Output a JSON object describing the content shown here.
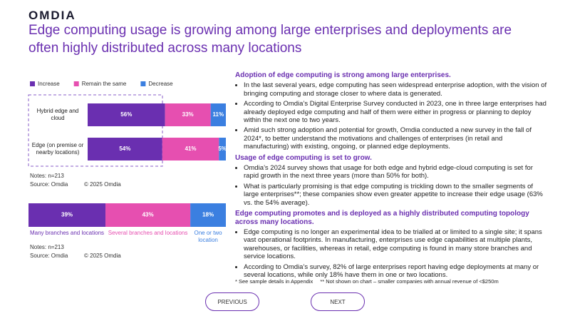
{
  "logo": "OMDIA",
  "title": "Edge computing usage is growing among large enterprises and deployments are often highly distributed across many locations",
  "chart_data": [
    {
      "type": "bar",
      "orientation": "horizontal",
      "stacked": true,
      "categories": [
        "Hybrid edge and cloud",
        "Edge (on premise or nearby locations)"
      ],
      "series": [
        {
          "name": "Increase",
          "color": "#6a2fb0",
          "values": [
            56,
            54
          ],
          "value_labels": [
            "56%",
            "54%"
          ]
        },
        {
          "name": "Remain the same",
          "color": "#e64fb0",
          "values": [
            33,
            41
          ],
          "value_labels": [
            "33%",
            "41%"
          ]
        },
        {
          "name": "Decrease",
          "color": "#3b7fe0",
          "values": [
            11,
            5
          ],
          "value_labels": [
            "11%",
            "5%"
          ]
        }
      ],
      "xlim": [
        0,
        100
      ],
      "legend": "top-left",
      "notes": "Notes: n=213",
      "source": "Source: Omdia",
      "copyright": "© 2025 Omdia"
    },
    {
      "type": "bar",
      "orientation": "horizontal",
      "stacked": true,
      "categories": [
        null
      ],
      "series": [
        {
          "name": "Many branches and locations",
          "color": "#6a2fb0",
          "values": [
            39
          ],
          "value_labels": [
            "39%"
          ]
        },
        {
          "name": "Several branches and locations",
          "color": "#e64fb0",
          "values": [
            43
          ],
          "value_labels": [
            "43%"
          ]
        },
        {
          "name": "One or two location",
          "color": "#3b7fe0",
          "values": [
            18
          ],
          "value_labels": [
            "18%"
          ]
        }
      ],
      "xlim": [
        0,
        100
      ],
      "legend": "bottom",
      "notes": "Notes: n=213",
      "source": "Source: Omdia",
      "copyright": "© 2025 Omdia"
    }
  ],
  "sections": [
    {
      "heading": "Adoption of edge computing is strong among large enterprises.",
      "bullets": [
        "In the last several years, edge computing has seen widespread enterprise adoption, with the vision of bringing computing and storage closer to where data is generated.",
        "According to Omdia’s Digital Enterprise Survey conducted in 2023, one in three large enterprises had already deployed edge computing and half of them were either in progress or planning to deploy within the next one to two years.",
        "Amid such strong adoption and potential for growth, Omdia conducted a new survey in the fall of 2024*, to better understand the motivations and challenges of enterprises (in retail and manufacturing) with existing, ongoing, or planned edge deployments."
      ]
    },
    {
      "heading": "Usage of edge computing is set to grow.",
      "bullets": [
        "Omdia’s 2024 survey shows that usage for both edge and hybrid edge-cloud computing is set for rapid growth in the next three years (more than 50% for both).",
        "What is particularly promising is that edge computing is trickling down to the smaller segments of large enterprises**; these companies show even greater appetite to increase their edge usage (63% vs. the 54% average)."
      ]
    },
    {
      "heading": "Edge computing promotes and is deployed as a highly distributed computing topology across many locations.",
      "bullets": [
        "Edge computing is no longer an experimental idea to be trialled at or limited to a single site; it spans vast operational footprints. In manufacturing, enterprises use edge capabilities at multiple plants, warehouses, or facilities, whereas in retail, edge computing is found in many store branches and service locations.",
        "According to Omdia’s survey, 82% of large enterprises report having edge deployments at many or several locations, while only 18% have them in one or two locations."
      ]
    }
  ],
  "footnote": [
    "* See sample details in Appendix",
    "** Not shown on chart – smaller companies with annual revenue of <$250m"
  ],
  "buttons": [
    "PREVIOUS",
    "NEXT"
  ]
}
